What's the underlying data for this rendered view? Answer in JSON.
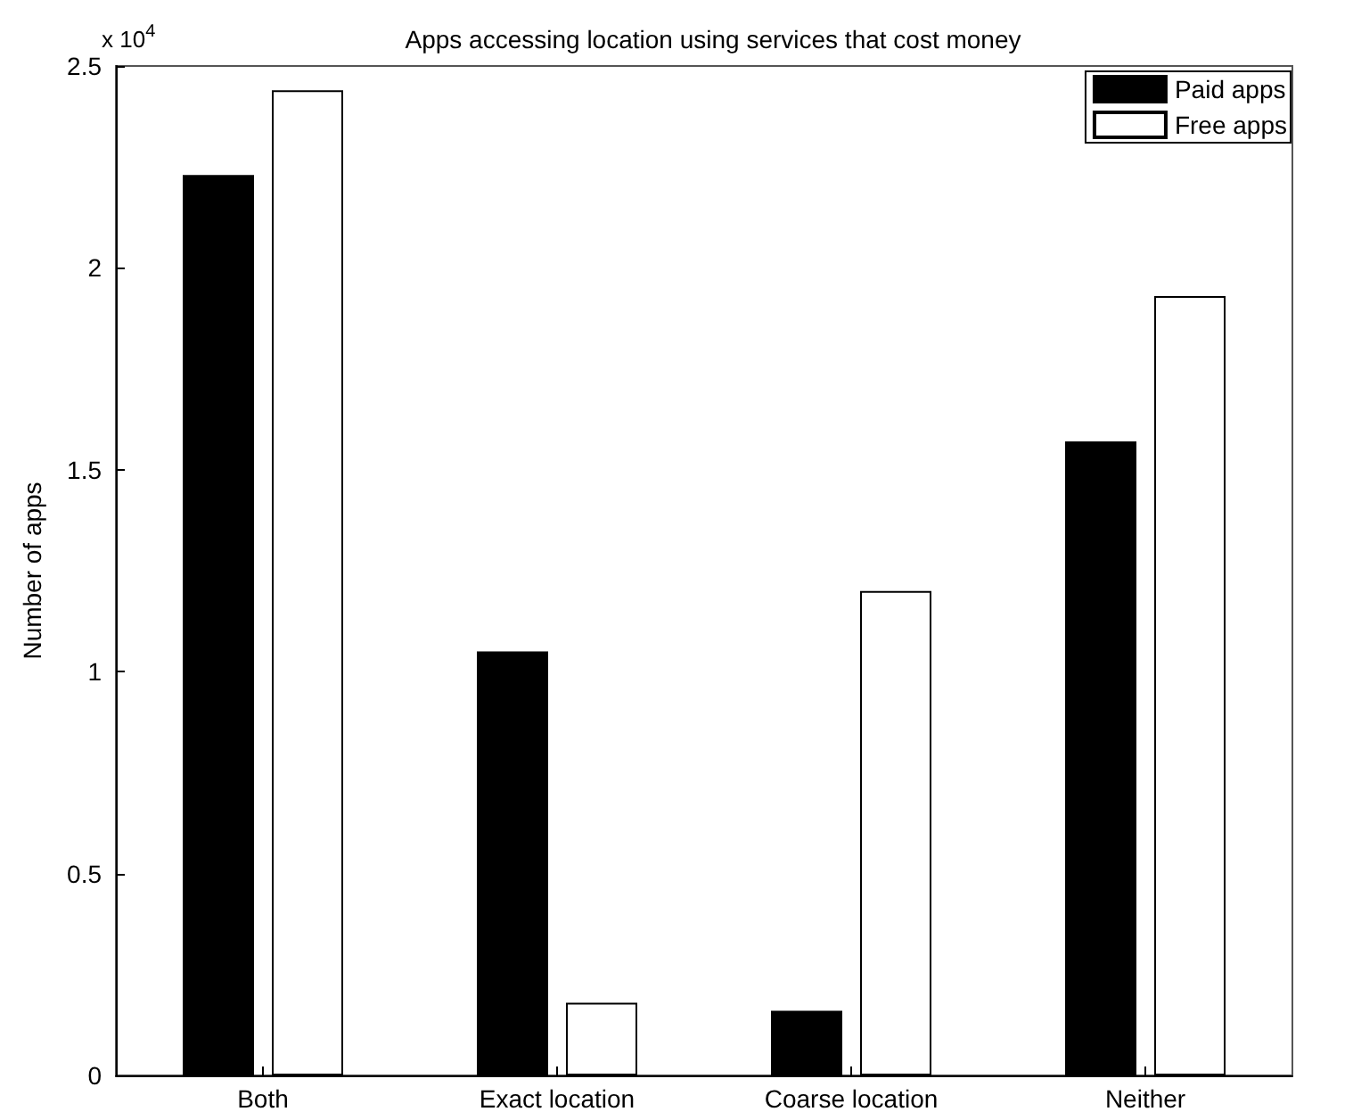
{
  "chart_data": {
    "type": "bar",
    "title": "Apps accessing location using services that cost money",
    "ylabel": "Number of apps",
    "categories": [
      "Both",
      "Exact location",
      "Coarse location",
      "Neither"
    ],
    "series": [
      {
        "name": "Paid apps",
        "color": "#000000",
        "values": [
          2.23,
          1.05,
          0.16,
          1.57
        ]
      },
      {
        "name": "Free apps",
        "color": "#ffffff",
        "values": [
          2.44,
          0.18,
          1.2,
          1.93
        ]
      }
    ],
    "ylim": [
      0,
      2.5
    ],
    "yticks": [
      0,
      0.5,
      1,
      1.5,
      2,
      2.5
    ],
    "annotations": [
      "x 10$^{4}$"
    ],
    "legend": "top right",
    "grid": false
  }
}
